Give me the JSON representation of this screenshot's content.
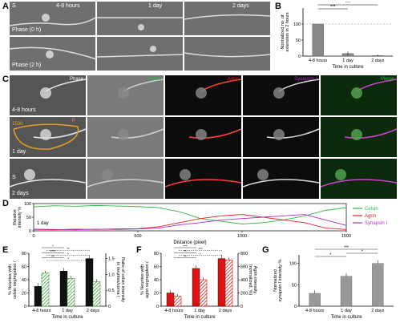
{
  "panels": {
    "A": "A",
    "B": "B",
    "C": "C",
    "D": "D",
    "E": "E",
    "F": "F",
    "G": "G"
  },
  "colors": {
    "celsin": "#2db84a",
    "agrin": "#e02020",
    "synapsin": "#b030c0",
    "bar_black": "#111111",
    "bar_green": "#3a9a3a",
    "bar_red": "#d11",
    "bar_gray": "#999999"
  },
  "panel_a": {
    "s_mark": "S",
    "timepoints": [
      "4-8 hours",
      "1 day",
      "2 days"
    ],
    "row_labels": [
      "Phase (0 h)",
      "Phase (2 h)"
    ]
  },
  "panel_c": {
    "channels": [
      "Phase",
      "Celsin",
      "Agrin",
      "Synapsin I",
      "Merge"
    ],
    "row_labels": [
      "4-8 hours",
      "1 day",
      "2 days"
    ],
    "trace_start": "1500",
    "trace_end": "0",
    "s_mark": "S"
  },
  "panel_b": {
    "chart_data": {
      "type": "bar",
      "categories": [
        "4-8 hours",
        "1 day",
        "2 days"
      ],
      "values": [
        100,
        8,
        2
      ],
      "errors": [
        0,
        6,
        2
      ],
      "ylabel": "Normalized no. of\nextension in 2 hours",
      "xlabel": "Time in culture",
      "yticks": [
        "0",
        "50",
        "100"
      ],
      "ylim": [
        0,
        150
      ],
      "sig_left": "***",
      "sig_right": "***"
    }
  },
  "panel_d": {
    "chart_data": {
      "type": "line",
      "xlabel": "Distance (pixel)",
      "ylabel": "Relative\nintensity %",
      "xlim": [
        0,
        1500
      ],
      "ylim": [
        0,
        100
      ],
      "xticks": [
        "0",
        "500",
        "1000",
        "1500"
      ],
      "yticks": [
        "0",
        "50",
        "100"
      ],
      "inset_label": "1 day",
      "series": [
        {
          "name": "Celsin",
          "x": [
            0,
            100,
            200,
            300,
            400,
            500,
            600,
            700,
            800,
            900,
            1000,
            1100,
            1200,
            1300,
            1400,
            1500
          ],
          "y": [
            88,
            92,
            90,
            93,
            91,
            89,
            85,
            70,
            45,
            35,
            25,
            30,
            40,
            55,
            75,
            85
          ]
        },
        {
          "name": "Agrin",
          "x": [
            0,
            100,
            200,
            300,
            400,
            500,
            600,
            700,
            800,
            900,
            1000,
            1100,
            1200,
            1300,
            1400,
            1500
          ],
          "y": [
            5,
            4,
            6,
            5,
            7,
            8,
            15,
            30,
            45,
            55,
            60,
            50,
            40,
            30,
            10,
            5
          ]
        },
        {
          "name": "Synapsin I",
          "x": [
            0,
            100,
            200,
            300,
            400,
            500,
            600,
            700,
            800,
            900,
            1000,
            1100,
            1200,
            1300,
            1400,
            1500
          ],
          "y": [
            6,
            5,
            4,
            6,
            5,
            7,
            10,
            22,
            30,
            40,
            45,
            50,
            55,
            60,
            40,
            20
          ]
        }
      ]
    }
  },
  "panel_e": {
    "chart_data": {
      "type": "bar",
      "categories": [
        "4-8 hours",
        "1 day",
        "2 days"
      ],
      "series": [
        {
          "name": "% Neurites with celsin segregation",
          "values": [
            30,
            53,
            72
          ]
        },
        {
          "name": "Ratio of celsin intensity",
          "values": [
            50,
            42,
            37
          ]
        }
      ],
      "ylabel_left": "% Neurites with\ncelsin segregation (",
      "ylabel_right": "Ratio of celsin intensity\nin neurites/soma (",
      "xlabel": "Time in culture",
      "yticks_left": [
        "0",
        "20",
        "40",
        "60",
        "80"
      ],
      "yticks_right": [
        "0",
        "0.5",
        "1.0",
        "1.5"
      ],
      "sig": [
        "*",
        "**",
        "****",
        "*",
        "**",
        "*"
      ]
    }
  },
  "panel_f": {
    "chart_data": {
      "type": "bar",
      "categories": [
        "4-8 hours",
        "1 day",
        "2 days"
      ],
      "series": [
        {
          "name": "% Neurites with agrin segregation",
          "values": [
            20,
            57,
            72
          ]
        },
        {
          "name": "Agrin intensity",
          "values": [
            15,
            40,
            70
          ]
        }
      ],
      "ylabel_left": "% Neurites with\nagrin segregation (",
      "ylabel_right": "Agrin intensity\n(normalized, %)",
      "xlabel": "Time in culture",
      "yticks_left": [
        "0",
        "20",
        "40",
        "60",
        "80"
      ],
      "yticks_right": [
        "0",
        "200",
        "400",
        "600",
        "800"
      ],
      "sig": [
        "***",
        "***",
        "**",
        "*",
        "**"
      ]
    }
  },
  "panel_g": {
    "chart_data": {
      "type": "bar",
      "categories": [
        "4-8 hours",
        "1 day",
        "2 days"
      ],
      "values": [
        30,
        70,
        100
      ],
      "ylabel": "Normalized\nsynapsin I intensity %",
      "xlabel": "Time in culture",
      "yticks": [
        "0",
        "50",
        "100"
      ],
      "sig": [
        "*",
        "*",
        "***"
      ]
    }
  }
}
